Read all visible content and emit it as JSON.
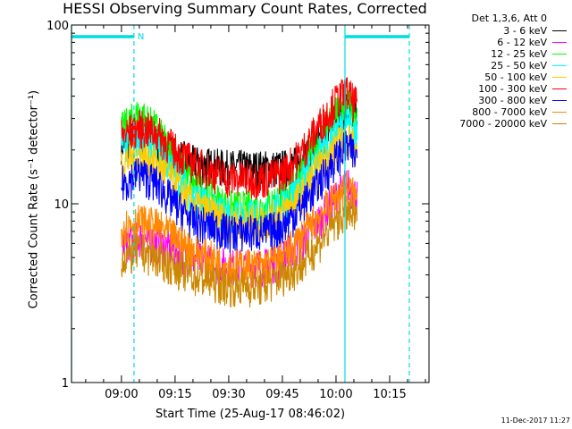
{
  "chart_data": {
    "type": "line",
    "title": "HESSI Observing Summary Count Rates, Corrected",
    "xlabel": "Start Time (25-Aug-17 08:46:02)",
    "ylabel": "Corrected Count Rate (s⁻¹ detector⁻¹)",
    "y_scale": "log",
    "ylim": [
      1,
      100
    ],
    "xlim": [
      "08:46:02",
      "10:26:00"
    ],
    "x_ticks": [
      "09:00",
      "09:15",
      "09:30",
      "09:45",
      "10:00",
      "10:15"
    ],
    "y_ticks": [
      "1",
      "10",
      "100"
    ],
    "legend_title": "Det 1,3,6, Att 0",
    "legend_position": "top-right, outside plot",
    "series": [
      {
        "name": "3 - 6 keV",
        "color": "#000000",
        "x": [
          "09:00",
          "09:05",
          "09:10",
          "09:15",
          "09:20",
          "09:30",
          "09:40",
          "09:45",
          "09:50",
          "09:55",
          "10:00",
          "10:03",
          "10:06"
        ],
        "values": [
          22,
          24,
          22,
          19,
          17,
          16,
          16,
          16,
          17,
          22,
          30,
          35,
          32
        ]
      },
      {
        "name": "6 - 12 keV",
        "color": "#ff00ff",
        "x": [
          "09:00",
          "09:05",
          "09:10",
          "09:15",
          "09:20",
          "09:30",
          "09:40",
          "09:45",
          "09:50",
          "09:55",
          "10:00",
          "10:03",
          "10:06"
        ],
        "values": [
          6,
          6.5,
          6,
          5.5,
          5,
          4.5,
          4.5,
          5,
          6,
          8,
          11,
          13,
          11
        ]
      },
      {
        "name": "12 - 25 keV",
        "color": "#00ff00",
        "x": [
          "09:00",
          "09:05",
          "09:10",
          "09:15",
          "09:20",
          "09:30",
          "09:40",
          "09:45",
          "09:50",
          "09:55",
          "10:00",
          "10:03",
          "10:06"
        ],
        "values": [
          26,
          32,
          26,
          18,
          13,
          9.5,
          9.5,
          11,
          15,
          22,
          32,
          37,
          30
        ]
      },
      {
        "name": "25 - 50 keV",
        "color": "#00ffff",
        "x": [
          "09:00",
          "09:05",
          "09:10",
          "09:15",
          "09:20",
          "09:30",
          "09:40",
          "09:45",
          "09:50",
          "09:55",
          "10:00",
          "10:03",
          "10:06"
        ],
        "values": [
          21,
          24,
          21,
          15,
          11,
          8.5,
          8.5,
          10,
          13,
          19,
          26,
          30,
          24
        ]
      },
      {
        "name": "50 - 100 keV",
        "color": "#ffcc00",
        "x": [
          "09:00",
          "09:05",
          "09:10",
          "09:15",
          "09:20",
          "09:30",
          "09:40",
          "09:45",
          "09:50",
          "09:55",
          "10:00",
          "10:03",
          "10:06"
        ],
        "values": [
          17,
          19,
          17,
          13,
          10,
          8,
          8,
          9,
          11,
          16,
          21,
          24,
          20
        ]
      },
      {
        "name": "100 - 300 keV",
        "color": "#ff0000",
        "x": [
          "09:00",
          "09:05",
          "09:10",
          "09:15",
          "09:20",
          "09:30",
          "09:40",
          "09:45",
          "09:50",
          "09:55",
          "10:00",
          "10:03",
          "10:06"
        ],
        "values": [
          24,
          27,
          25,
          20,
          17,
          14,
          14,
          15,
          19,
          27,
          38,
          42,
          35
        ]
      },
      {
        "name": "300 - 800 keV",
        "color": "#0000ff",
        "x": [
          "09:00",
          "09:05",
          "09:10",
          "09:15",
          "09:20",
          "09:30",
          "09:40",
          "09:45",
          "09:50",
          "09:55",
          "10:00",
          "10:03",
          "10:06"
        ],
        "values": [
          13,
          15,
          13,
          10,
          8,
          7,
          7,
          7.5,
          9.5,
          13,
          18,
          21,
          18
        ]
      },
      {
        "name": "800 - 7000 keV",
        "color": "#ff8800",
        "x": [
          "09:00",
          "09:05",
          "09:10",
          "09:15",
          "09:20",
          "09:30",
          "09:40",
          "09:45",
          "09:50",
          "09:55",
          "10:00",
          "10:03",
          "10:06"
        ],
        "values": [
          7.5,
          8,
          7.5,
          6.5,
          5.5,
          4.5,
          4.5,
          5,
          6.5,
          8.5,
          11,
          12.5,
          10.5
        ]
      },
      {
        "name": "7000 - 20000 keV",
        "color": "#cc8800",
        "x": [
          "09:00",
          "09:05",
          "09:10",
          "09:15",
          "09:20",
          "09:30",
          "09:40",
          "09:45",
          "09:50",
          "09:55",
          "10:00",
          "10:03",
          "10:06"
        ],
        "values": [
          5,
          5.5,
          5,
          4.5,
          4,
          3.5,
          3.5,
          4,
          4.5,
          6,
          8,
          9,
          8
        ]
      }
    ],
    "markers": {
      "color": "#00dddd",
      "solid_lines": [
        "08:46:02",
        "10:02:30"
      ],
      "dashed_lines": [
        "09:03:30",
        "10:20:30"
      ],
      "night_bars": [
        [
          "08:46:02",
          "09:03:30"
        ],
        [
          "10:02:30",
          "10:20:30"
        ]
      ],
      "night_label": "N"
    }
  },
  "footer": {
    "timestamp": "11-Dec-2017 11:27"
  }
}
